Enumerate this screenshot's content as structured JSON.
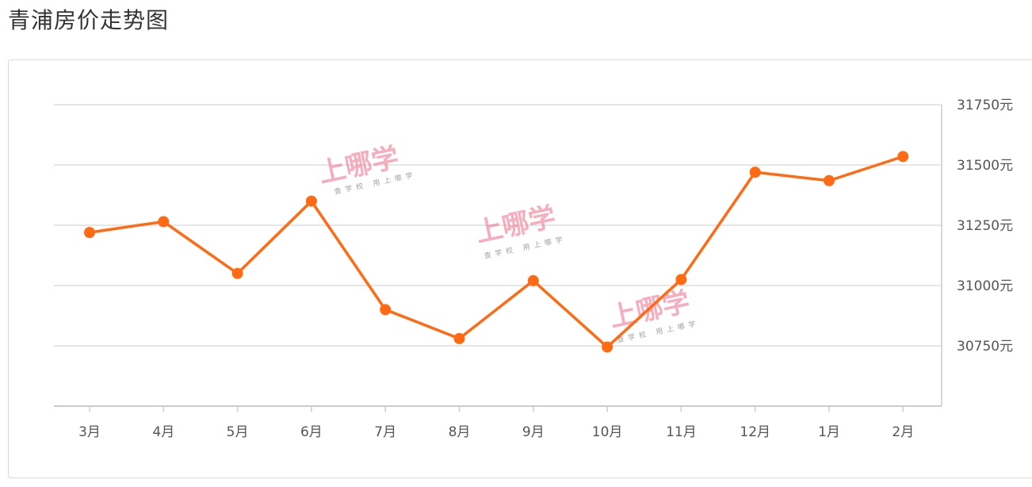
{
  "page": {
    "title": "青浦房价走势图"
  },
  "watermark": {
    "main": "上哪学",
    "sub": "查学校 用上哪学"
  },
  "colors": {
    "line": "#ff6a13",
    "grid": "#dddddd",
    "axis": "#cccccc",
    "text": "#555555"
  },
  "chart_data": {
    "type": "line",
    "title": "",
    "xlabel": "",
    "ylabel": "",
    "categories": [
      "3月",
      "4月",
      "5月",
      "6月",
      "7月",
      "8月",
      "9月",
      "10月",
      "11月",
      "12月",
      "1月",
      "2月"
    ],
    "series": [
      {
        "values": [
          31220,
          31265,
          31050,
          31350,
          30900,
          30780,
          31020,
          30745,
          31025,
          31470,
          31435,
          31535
        ]
      }
    ],
    "y_ticks": [
      30750,
      31000,
      31250,
      31500,
      31750
    ],
    "y_tick_suffix": "元",
    "ylim": [
      30500,
      31750
    ],
    "grid": true,
    "legend": "none"
  }
}
